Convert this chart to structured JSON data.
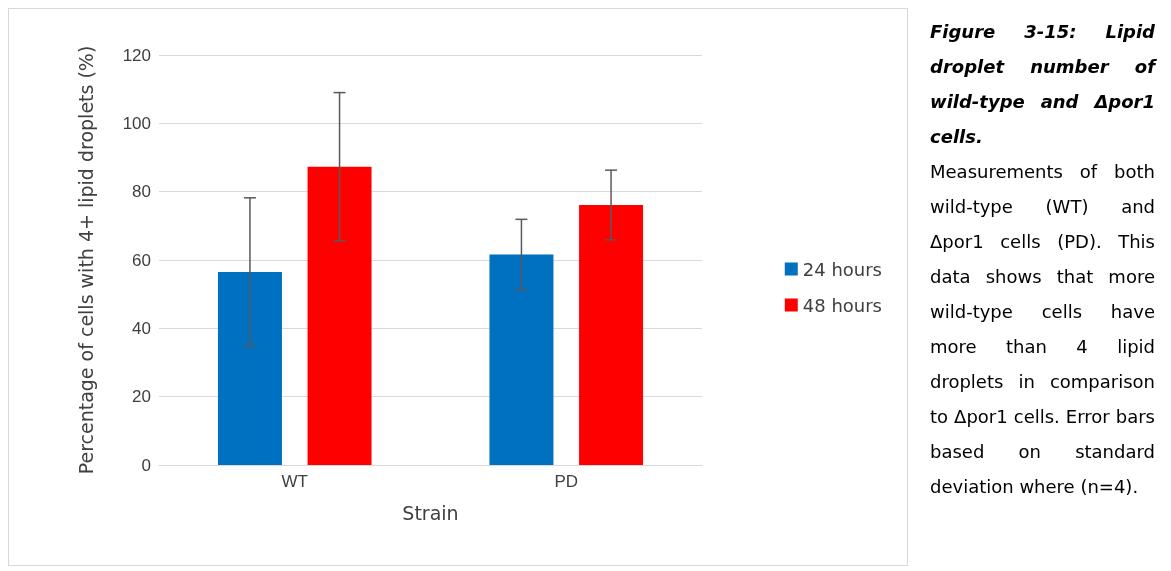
{
  "chart_data": {
    "type": "bar",
    "title": "Figure 3-15: Lipid droplet number of wild-type and Δpor1 cells.",
    "annotations": [
      "Measurements of both wild-type (WT) and Δpor1 cells (PD). This data shows that more wild-type cells have more than 4 lipid droplets in comparison to Δpor1 cells. Error bars based on standard deviation where (n=4)."
    ],
    "xlabel": "Strain",
    "ylabel": "Percentage of cells with 4+ lipid droplets (%)",
    "categories": [
      "WT",
      "PD"
    ],
    "series": [
      {
        "name": "24 hours",
        "color": "#0070c0",
        "values": [
          56.5,
          61.6
        ],
        "errors": [
          21.7,
          10.3
        ]
      },
      {
        "name": "48 hours",
        "color": "#ff0000",
        "values": [
          87.3,
          76.1
        ],
        "errors": [
          21.7,
          10.2
        ]
      }
    ],
    "ylim": [
      0,
      120
    ],
    "yticks": [
      0,
      20,
      40,
      60,
      80,
      100,
      120
    ],
    "grid": "y",
    "legend": "right"
  }
}
